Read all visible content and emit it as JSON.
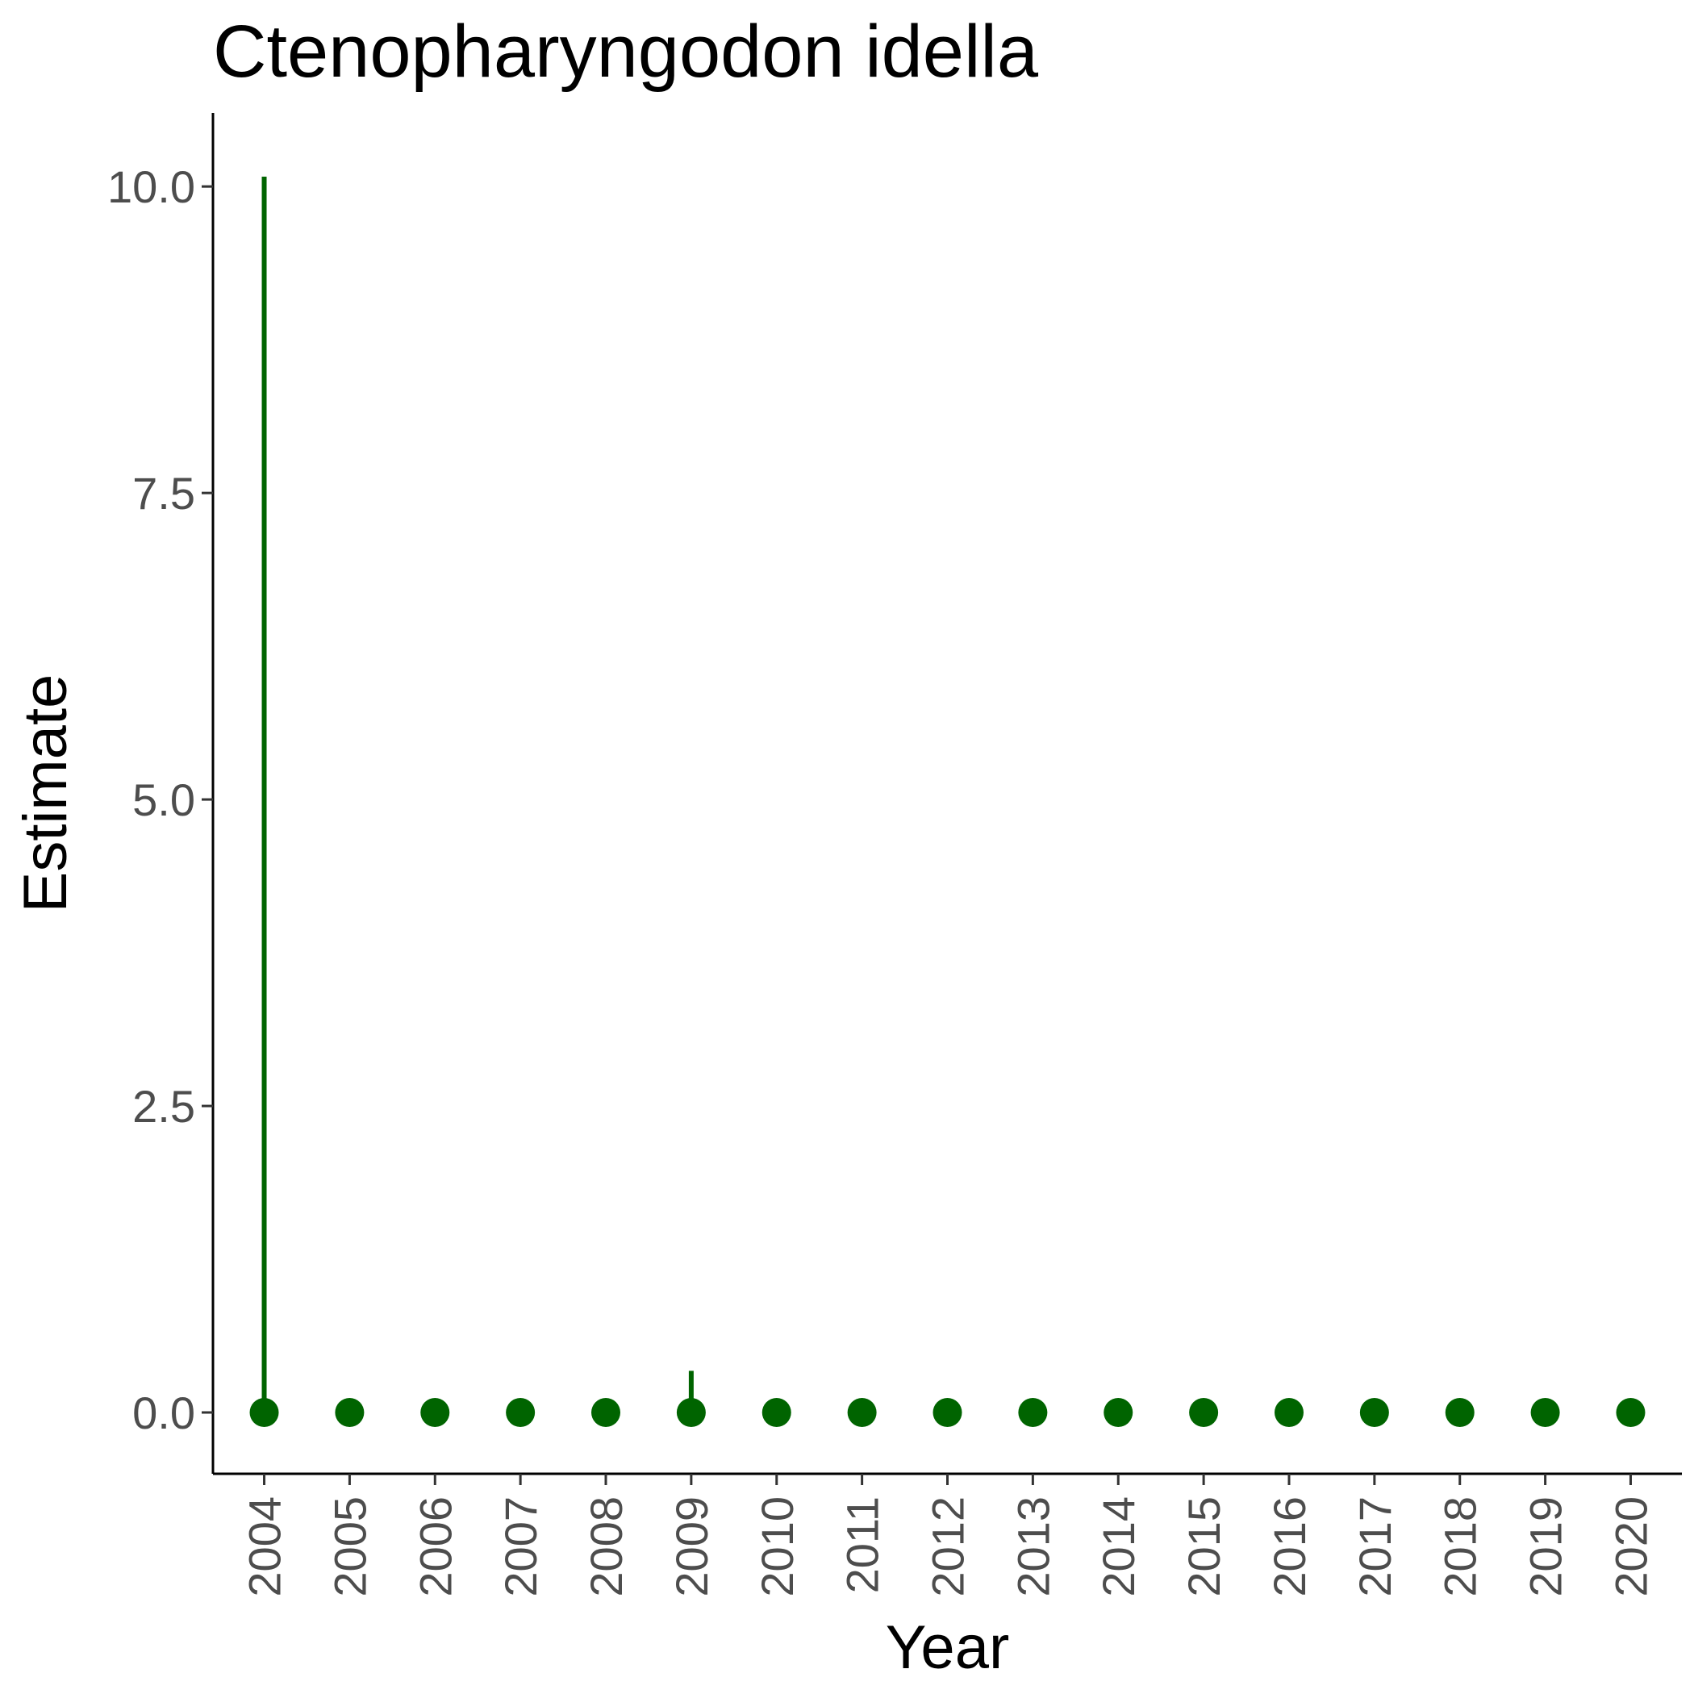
{
  "chart_data": {
    "type": "scatter",
    "title": "Ctenopharyngodon idella",
    "xlabel": "Year",
    "ylabel": "Estimate",
    "ylim": [
      -0.5,
      10.6
    ],
    "yticks": [
      "0.0",
      "2.5",
      "5.0",
      "7.5",
      "10.0"
    ],
    "ytick_values": [
      0,
      2.5,
      5,
      7.5,
      10
    ],
    "grid": false,
    "color": "#006400",
    "categories": [
      "2004",
      "2005",
      "2006",
      "2007",
      "2008",
      "2009",
      "2010",
      "2011",
      "2012",
      "2013",
      "2014",
      "2015",
      "2016",
      "2017",
      "2018",
      "2019",
      "2020"
    ],
    "values": [
      0,
      0,
      0,
      0,
      0,
      0,
      0,
      0,
      0,
      0,
      0,
      0,
      0,
      0,
      0,
      0,
      0
    ],
    "upper": [
      10.08,
      null,
      null,
      null,
      null,
      0.34,
      null,
      null,
      null,
      null,
      null,
      null,
      null,
      null,
      null,
      null,
      null
    ]
  }
}
